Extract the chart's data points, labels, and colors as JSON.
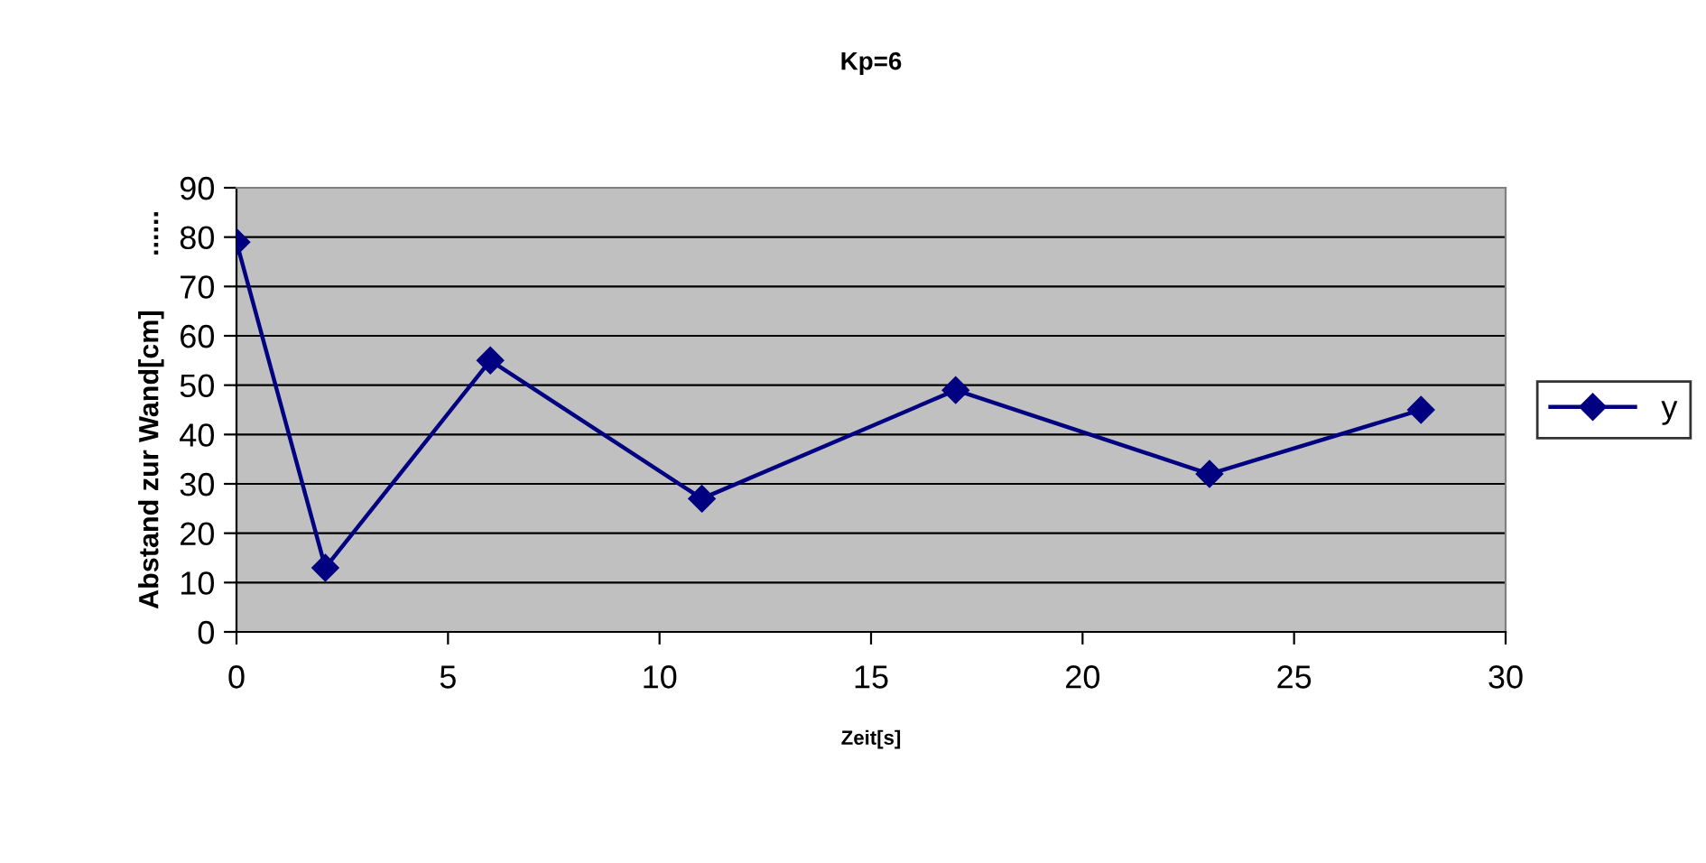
{
  "chart_data": {
    "type": "line",
    "title": "Kp=6",
    "xlabel": "Zeit[s]",
    "ylabel": "Abstand zur Wand[cm]       ......",
    "x": [
      0,
      2.1,
      6,
      11,
      17,
      23,
      28
    ],
    "series": [
      {
        "name": "y",
        "color": "#000080",
        "values": [
          79,
          13,
          55,
          27,
          49,
          32,
          45
        ]
      }
    ],
    "xlim": [
      0,
      30
    ],
    "xticks": [
      0,
      5,
      10,
      15,
      20,
      25,
      30
    ],
    "ylim": [
      0,
      90
    ],
    "yticks": [
      0,
      10,
      20,
      30,
      40,
      50,
      60,
      70,
      80,
      90
    ],
    "grid": "y",
    "legend": "right",
    "marker": "diamond",
    "line_style": "solid"
  }
}
